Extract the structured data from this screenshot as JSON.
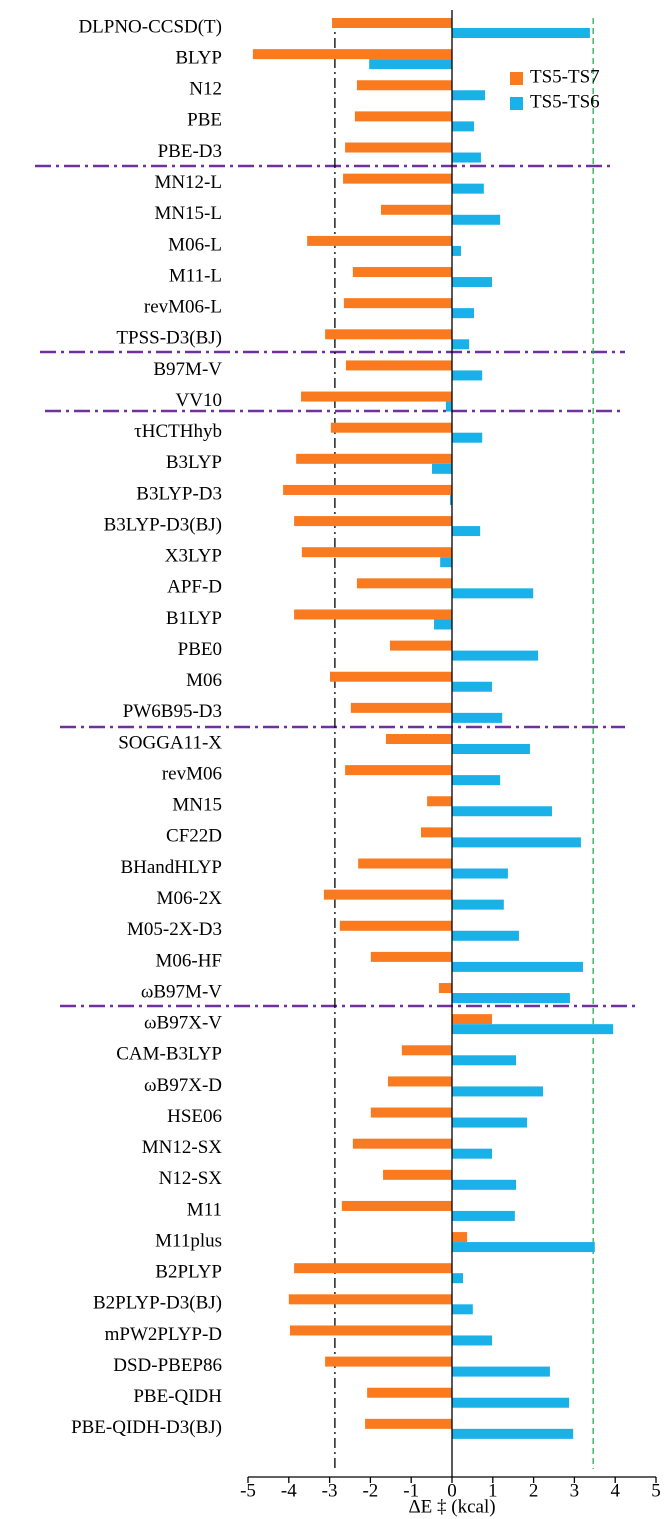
{
  "chart_data": {
    "type": "barh",
    "x_label": "ΔE ‡ (kcal)",
    "categories": [
      "DLPNO-CCSD(T)",
      "BLYP",
      "N12",
      "PBE",
      "PBE-D3",
      "MN12-L",
      "MN15-L",
      "M06-L",
      "M11-L",
      "revM06-L",
      "TPSS-D3(BJ)",
      "B97M-V",
      "VV10",
      "τHCTHhyb",
      "B3LYP",
      "B3LYP-D3",
      "B3LYP-D3(BJ)",
      "X3LYP",
      "APF-D",
      "B1LYP",
      "PBE0",
      "M06",
      "PW6B95-D3",
      "SOGGA11-X",
      "revM06",
      "MN15",
      "CF22D",
      "BHandHLYP",
      "M06-2X",
      "M05-2X-D3",
      "M06-HF",
      "ωB97M-V",
      "ωB97X-V",
      "CAM-B3LYP",
      "ωB97X-D",
      "HSE06",
      "MN12-SX",
      "N12-SX",
      "M11",
      "M11plus",
      "B2PLYP",
      "B2PLYP-D3(BJ)",
      "mPW2PLYP-D",
      "DSD-PBEP86",
      "PBE-QIDH",
      "PBE-QIDH-D3(BJ)"
    ],
    "series": [
      {
        "name": "TS5-TS7",
        "color": "#f97a1f",
        "values": [
          -2.94,
          -4.88,
          -2.33,
          -2.38,
          -2.62,
          -2.67,
          -1.74,
          -3.55,
          -2.43,
          -2.65,
          -3.11,
          -2.6,
          -3.7,
          -2.97,
          -3.82,
          -4.14,
          -3.87,
          -3.68,
          -2.33,
          -3.87,
          -1.52,
          -2.99,
          -2.48,
          -1.62,
          -2.62,
          -0.61,
          -0.76,
          -2.3,
          -3.14,
          -2.75,
          -1.99,
          -0.32,
          0.98,
          -1.23,
          -1.57,
          -1.99,
          -2.43,
          -1.69,
          -2.7,
          0.37,
          -3.87,
          -4.0,
          -3.97,
          -3.11,
          -2.08,
          -2.13
        ]
      },
      {
        "name": "TS5-TS6",
        "color": "#1ab0e8",
        "values": [
          3.38,
          -2.03,
          0.81,
          0.54,
          0.71,
          0.78,
          1.18,
          0.22,
          0.98,
          0.54,
          0.42,
          0.74,
          -0.15,
          0.74,
          -0.49,
          -0.05,
          0.69,
          -0.29,
          1.99,
          -0.44,
          2.11,
          0.98,
          1.23,
          1.91,
          1.18,
          2.45,
          3.16,
          1.37,
          1.27,
          1.64,
          3.21,
          2.89,
          3.95,
          1.57,
          2.23,
          1.84,
          0.98,
          1.57,
          1.54,
          3.5,
          0.27,
          0.51,
          0.98,
          2.4,
          2.87,
          2.97
        ]
      }
    ],
    "xlim": [
      -5,
      5
    ],
    "xticks": [
      -5,
      -4,
      -3,
      -2,
      -1,
      0,
      1,
      2,
      3,
      4,
      5
    ],
    "reference_lines": [
      {
        "value": -2.87,
        "color": "#000000"
      },
      {
        "value": 3.46,
        "color": "#22b34c"
      }
    ],
    "legend": "upper right"
  }
}
